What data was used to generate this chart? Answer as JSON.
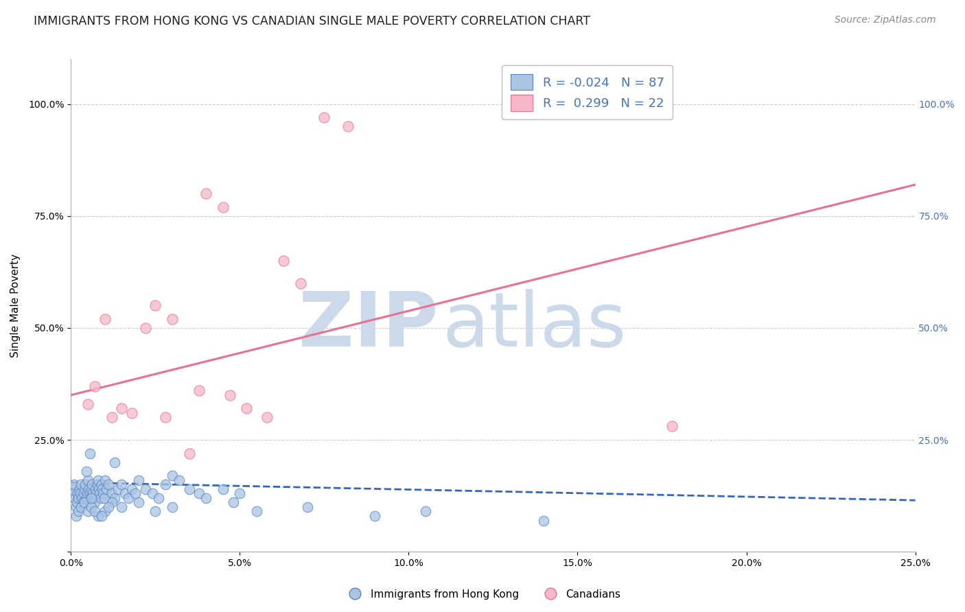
{
  "title": "IMMIGRANTS FROM HONG KONG VS CANADIAN SINGLE MALE POVERTY CORRELATION CHART",
  "source": "Source: ZipAtlas.com",
  "ylabel": "Single Male Poverty",
  "legend_labels": [
    "Immigrants from Hong Kong",
    "Canadians"
  ],
  "R_blue": -0.024,
  "N_blue": 87,
  "R_pink": 0.299,
  "N_pink": 22,
  "blue_color": "#aac4e2",
  "blue_edge_color": "#5585c5",
  "pink_color": "#f5b8c8",
  "pink_edge_color": "#e87090",
  "blue_line_color": "#3366bb",
  "pink_line_color": "#e87090",
  "watermark_zip_color": "#ccd9ea",
  "watermark_atlas_color": "#ccd9ea",
  "background_color": "#ffffff",
  "grid_color": "#cccccc",
  "right_tick_color": "#4472c4",
  "title_color": "#222222",
  "source_color": "#888888",
  "xlim": [
    0,
    25
  ],
  "ylim": [
    0,
    110
  ],
  "pink_line_x0": 0,
  "pink_line_y0": 35,
  "pink_line_x1": 25,
  "pink_line_y1": 82,
  "blue_line_x0": 0,
  "blue_line_y0": 15.5,
  "blue_line_x1": 25,
  "blue_line_y1": 11.5,
  "pink_x": [
    7.5,
    8.2,
    4.0,
    4.5,
    6.3,
    2.5,
    3.0,
    2.2,
    3.8,
    4.7,
    1.5,
    1.8,
    2.8,
    1.2,
    5.2,
    5.8,
    1.0,
    6.8,
    3.5,
    17.8,
    0.5,
    0.7
  ],
  "pink_y": [
    97,
    95,
    80,
    77,
    65,
    55,
    52,
    50,
    36,
    35,
    32,
    31,
    30,
    30,
    32,
    30,
    52,
    60,
    22,
    28,
    33,
    37
  ],
  "blue_x": [
    0.05,
    0.08,
    0.1,
    0.12,
    0.15,
    0.18,
    0.2,
    0.22,
    0.25,
    0.28,
    0.3,
    0.32,
    0.35,
    0.38,
    0.4,
    0.42,
    0.45,
    0.48,
    0.5,
    0.52,
    0.55,
    0.58,
    0.6,
    0.62,
    0.65,
    0.68,
    0.7,
    0.72,
    0.75,
    0.78,
    0.8,
    0.82,
    0.85,
    0.88,
    0.9,
    0.92,
    0.95,
    0.98,
    1.0,
    1.05,
    1.1,
    1.2,
    1.3,
    1.4,
    1.5,
    1.6,
    1.7,
    1.8,
    1.9,
    2.0,
    2.2,
    2.4,
    2.6,
    2.8,
    3.0,
    3.2,
    3.5,
    3.8,
    4.0,
    4.5,
    5.0,
    0.15,
    0.22,
    0.3,
    0.4,
    0.5,
    0.6,
    0.8,
    1.0,
    1.5,
    2.0,
    2.5,
    3.0,
    1.2,
    0.7,
    0.9,
    1.1,
    0.6,
    4.8,
    5.5,
    7.0,
    9.0,
    10.5,
    14.0,
    1.3,
    0.45,
    0.55
  ],
  "blue_y": [
    14,
    13,
    15,
    12,
    10,
    11,
    13,
    12,
    14,
    13,
    15,
    12,
    11,
    13,
    14,
    15,
    12,
    13,
    16,
    14,
    13,
    12,
    14,
    15,
    13,
    12,
    11,
    14,
    13,
    15,
    16,
    14,
    13,
    12,
    15,
    14,
    13,
    12,
    16,
    14,
    15,
    13,
    12,
    14,
    15,
    13,
    12,
    14,
    13,
    16,
    14,
    13,
    12,
    15,
    17,
    16,
    14,
    13,
    12,
    14,
    13,
    8,
    9,
    10,
    11,
    9,
    10,
    8,
    9,
    10,
    11,
    9,
    10,
    11,
    9,
    8,
    10,
    12,
    11,
    9,
    10,
    8,
    9,
    7,
    20,
    18,
    22
  ]
}
